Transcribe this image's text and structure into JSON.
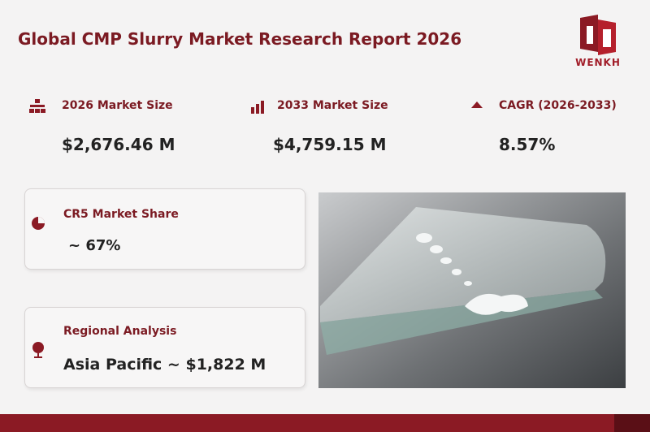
{
  "header": {
    "title": "Global CMP Slurry Market Research Report 2026",
    "logo": "WENKH"
  },
  "stats": [
    {
      "label": "2026 Market Size",
      "value": "$2,676.46  M"
    },
    {
      "label": "2033 Market Size",
      "value": "$4,759.15  M"
    },
    {
      "label": "CAGR (2026-2033)",
      "value": "8.57%"
    }
  ],
  "cards": [
    {
      "label": "CR5 Market Share",
      "value": "~ 67%"
    },
    {
      "label": "Regional Analysis",
      "value": "Asia Pacific ~ $1,822 M"
    }
  ]
}
